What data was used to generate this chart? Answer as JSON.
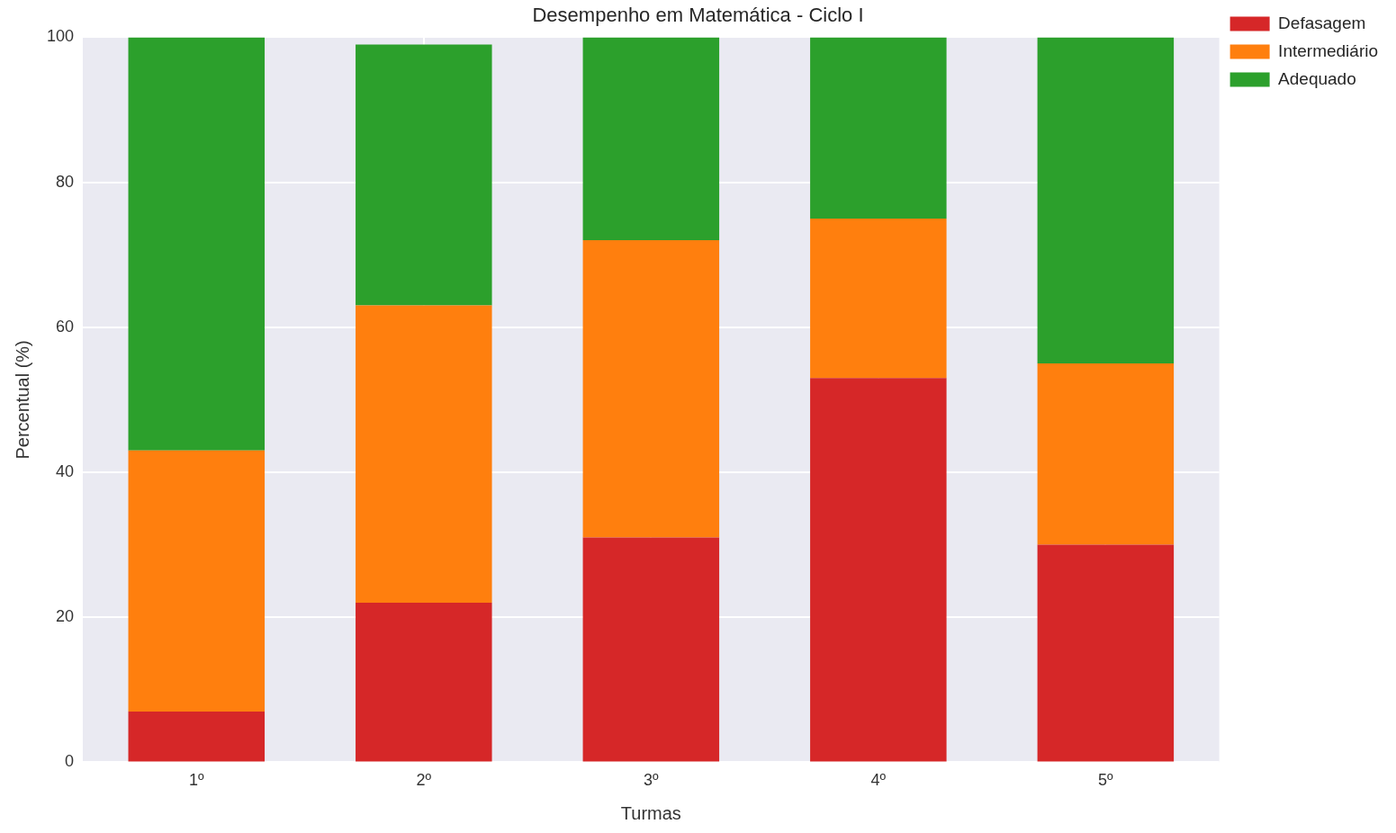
{
  "chart_data": {
    "type": "bar",
    "title": "Desempenho em Matemática - Ciclo I",
    "xlabel": "Turmas",
    "ylabel": "Percentual (%)",
    "categories": [
      "1º",
      "2º",
      "3º",
      "4º",
      "5º"
    ],
    "series": [
      {
        "name": "Defasagem",
        "color": "#d62728",
        "values": [
          7,
          22,
          31,
          53,
          30
        ]
      },
      {
        "name": "Intermediário",
        "color": "#ff7f0e",
        "values": [
          36,
          41,
          41,
          22,
          25
        ]
      },
      {
        "name": "Adequado",
        "color": "#2ca02c",
        "values": [
          57,
          36,
          28,
          25,
          45
        ]
      }
    ],
    "stacked": true,
    "ylim": [
      0,
      100
    ],
    "yticks": [
      0,
      20,
      40,
      60,
      80,
      100
    ],
    "grid": true,
    "legend": "top right"
  }
}
